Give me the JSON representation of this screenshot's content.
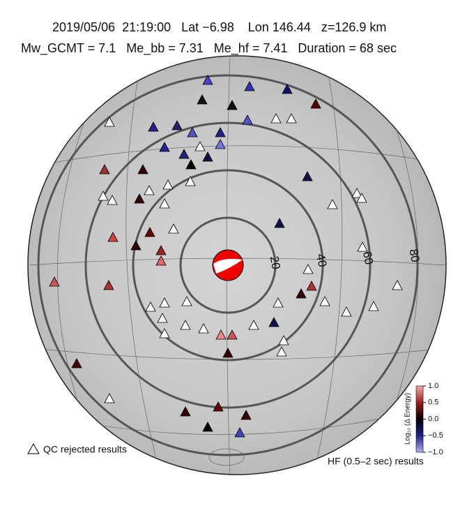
{
  "header": {
    "line1": "2019/05/06  21:19:00   Lat −6.98    Lon 146.44   z=126.9 km",
    "line2": "Mw_GCMT = 7.1   Me_bb = 7.31   Me_hf = 7.41   Duration = 68 sec"
  },
  "map": {
    "ring_labels": [
      20,
      40,
      60,
      80
    ]
  },
  "colorbar": {
    "label": "Log₁₀ (Δ Energy)",
    "ticks": [
      {
        "value": 1,
        "label": "1.0"
      },
      {
        "value": 0.5,
        "label": "0.5"
      },
      {
        "value": 0,
        "label": "0.0"
      },
      {
        "value": -0.5,
        "label": "−0.5"
      },
      {
        "value": -1,
        "label": "−1.0"
      }
    ]
  },
  "legend": {
    "rejected": "QC rejected results",
    "band": "HF (0.5–2 sec) results"
  }
}
